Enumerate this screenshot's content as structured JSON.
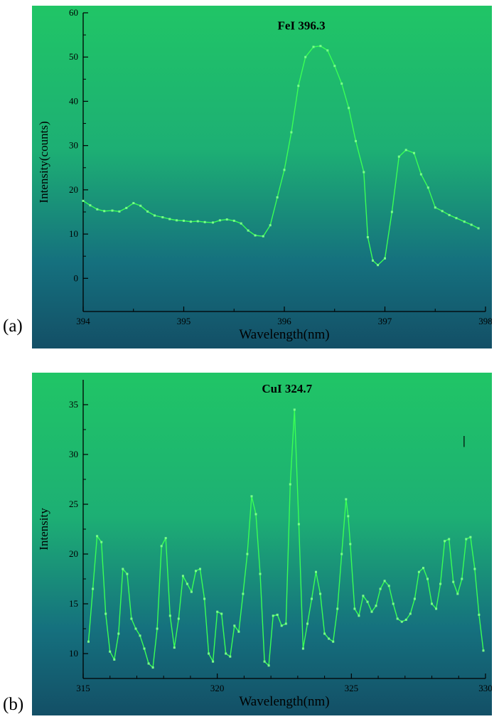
{
  "page": {
    "background": "#ffffff"
  },
  "figures": [
    {
      "label": "(a)"
    },
    {
      "label": "(b)"
    }
  ],
  "colors": {
    "panel_gradient": [
      "#20c566",
      "#1daf74",
      "#15707e",
      "#134f66"
    ],
    "line": "#3aff55",
    "marker": "#7aff88",
    "axis": "#000000",
    "text": "#000000"
  },
  "chart_data": [
    {
      "type": "line",
      "panel": "a",
      "title": "",
      "xlabel": "Wavelength(nm)",
      "ylabel": "Intensity(counts)",
      "xlim": [
        394,
        398
      ],
      "ylim": [
        -7.5,
        60
      ],
      "xticks": [
        394,
        395,
        396,
        397,
        398
      ],
      "yticks": [
        0,
        10,
        20,
        30,
        40,
        50,
        60
      ],
      "minor_xticks": [
        394.5,
        395.5,
        396.5,
        397.5
      ],
      "minor_yticks": [
        5,
        15,
        25,
        35,
        45,
        55
      ],
      "annotations": [
        {
          "text": "FeI 396.3",
          "x": 396.17,
          "y": 56.2
        }
      ],
      "x": [
        394.0,
        394.07,
        394.14,
        394.21,
        394.29,
        394.36,
        394.43,
        394.5,
        394.57,
        394.64,
        394.71,
        394.79,
        394.86,
        394.93,
        395.0,
        395.07,
        395.14,
        395.21,
        395.29,
        395.36,
        395.43,
        395.5,
        395.57,
        395.64,
        395.71,
        395.79,
        395.86,
        395.93,
        396.0,
        396.07,
        396.14,
        396.21,
        396.29,
        396.36,
        396.43,
        396.5,
        396.57,
        396.64,
        396.71,
        396.79,
        396.83,
        396.88,
        396.93,
        397.0,
        397.07,
        397.14,
        397.21,
        397.29,
        397.36,
        397.43,
        397.5,
        397.57,
        397.64,
        397.71,
        397.79,
        397.86,
        397.93
      ],
      "y": [
        17.5,
        16.5,
        15.6,
        15.2,
        15.3,
        15.1,
        15.9,
        17.0,
        16.4,
        15.1,
        14.2,
        13.8,
        13.4,
        13.1,
        13.0,
        12.8,
        12.9,
        12.7,
        12.6,
        13.1,
        13.3,
        13.0,
        12.4,
        10.8,
        9.7,
        9.5,
        12.0,
        18.3,
        24.5,
        33.0,
        43.5,
        50.0,
        52.3,
        52.5,
        51.5,
        48.0,
        44.0,
        38.5,
        31.0,
        24.0,
        9.3,
        4.0,
        3.0,
        4.5,
        15.0,
        27.5,
        29.0,
        28.3,
        23.5,
        20.5,
        16.0,
        15.2,
        14.3,
        13.6,
        12.8,
        12.1,
        11.3
      ]
    },
    {
      "type": "line",
      "panel": "b",
      "title": "",
      "xlabel": "Wavelength(nm)",
      "ylabel": "Intensity",
      "xlim": [
        315,
        330
      ],
      "ylim": [
        7.5,
        37.5
      ],
      "xticks": [
        315,
        320,
        325,
        330
      ],
      "yticks": [
        10,
        15,
        20,
        25,
        30,
        35
      ],
      "minor_xticks": [
        316,
        317,
        318,
        319,
        321,
        322,
        323,
        324,
        326,
        327,
        328,
        329
      ],
      "minor_yticks": [
        12.5,
        17.5,
        22.5,
        27.5,
        32.5
      ],
      "annotations": [
        {
          "text": "CuI 324.7",
          "x": 322.6,
          "y": 36.2
        },
        {
          "text": "|",
          "x": 329.2,
          "y": 31.0
        }
      ],
      "x": [
        315.2,
        315.36,
        315.52,
        315.68,
        315.84,
        316.0,
        316.16,
        316.32,
        316.48,
        316.64,
        316.8,
        316.96,
        317.12,
        317.28,
        317.44,
        317.6,
        317.76,
        317.92,
        318.08,
        318.24,
        318.4,
        318.56,
        318.72,
        318.88,
        319.04,
        319.2,
        319.36,
        319.52,
        319.68,
        319.84,
        320.0,
        320.16,
        320.32,
        320.48,
        320.64,
        320.8,
        320.96,
        321.12,
        321.28,
        321.44,
        321.6,
        321.76,
        321.92,
        322.08,
        322.24,
        322.4,
        322.56,
        322.72,
        322.88,
        323.04,
        323.2,
        323.36,
        323.52,
        323.68,
        323.84,
        324.0,
        324.16,
        324.32,
        324.48,
        324.64,
        324.8,
        324.88,
        324.96,
        325.12,
        325.28,
        325.44,
        325.6,
        325.76,
        325.92,
        326.08,
        326.24,
        326.4,
        326.56,
        326.72,
        326.88,
        327.04,
        327.2,
        327.36,
        327.52,
        327.68,
        327.84,
        328.0,
        328.16,
        328.32,
        328.48,
        328.64,
        328.8,
        328.96,
        329.12,
        329.28,
        329.44,
        329.6,
        329.76,
        329.92
      ],
      "y": [
        11.2,
        16.5,
        21.8,
        21.2,
        14.0,
        10.2,
        9.4,
        12.0,
        18.5,
        18.0,
        13.5,
        12.5,
        11.8,
        10.5,
        9.0,
        8.6,
        12.5,
        20.8,
        21.6,
        13.8,
        10.6,
        13.5,
        17.8,
        17.0,
        16.2,
        18.3,
        18.5,
        15.5,
        10.0,
        9.2,
        14.2,
        14.0,
        10.0,
        9.7,
        12.8,
        12.2,
        16.0,
        20.0,
        25.8,
        24.0,
        18.0,
        9.2,
        8.8,
        13.8,
        13.9,
        12.8,
        13.0,
        27.0,
        34.5,
        23.0,
        10.5,
        13.0,
        15.5,
        18.2,
        16.0,
        12.0,
        11.5,
        11.2,
        14.5,
        20.0,
        25.5,
        23.8,
        21.0,
        14.5,
        13.8,
        15.8,
        15.2,
        14.2,
        14.8,
        16.5,
        17.3,
        16.8,
        15.0,
        13.5,
        13.2,
        13.4,
        14.0,
        15.5,
        18.2,
        18.6,
        17.5,
        15.0,
        14.5,
        17.0,
        21.3,
        21.5,
        17.2,
        16.0,
        17.5,
        21.5,
        21.7,
        18.5,
        13.9,
        10.3
      ]
    }
  ]
}
